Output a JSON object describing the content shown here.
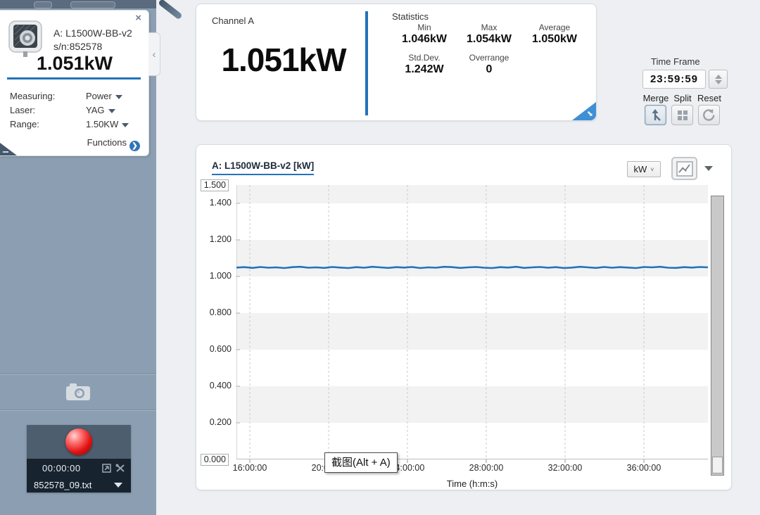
{
  "accent_color": "#2273b9",
  "icons": {
    "close": "×",
    "chevron_left": "‹",
    "functions_arrow": "❯",
    "unit_caret": "˅",
    "corner_arrow": "◥"
  },
  "sidebar": {
    "device": {
      "name": "A: L1500W-BB-v2",
      "serial": "s/n:852578",
      "reading": "1.051kW",
      "rows": [
        {
          "label": "Measuring:",
          "value": "Power"
        },
        {
          "label": "Laser:",
          "value": "YAG"
        },
        {
          "label": "Range:",
          "value": "1.50KW"
        }
      ],
      "functions_label": "Functions"
    },
    "recorder": {
      "elapsed": "00:00:00",
      "filename": "852578_09.txt"
    }
  },
  "channel_panel": {
    "title": "Channel A",
    "reading": "1.051kW",
    "stats": {
      "title": "Statistics",
      "items": [
        {
          "label": "Min",
          "value": "1.046kW"
        },
        {
          "label": "Max",
          "value": "1.054kW"
        },
        {
          "label": "Average",
          "value": "1.050kW"
        },
        {
          "label": "Std.Dev.",
          "value": "1.242W"
        },
        {
          "label": "Overrange",
          "value": "0"
        },
        {
          "label": "",
          "value": ""
        }
      ]
    }
  },
  "time_frame": {
    "label": "Time Frame",
    "value": "23:59:59",
    "buttons": [
      {
        "label": "Merge"
      },
      {
        "label": "Split"
      },
      {
        "label": "Reset"
      }
    ]
  },
  "chart_panel": {
    "unit_select": "kW"
  },
  "tooltip": {
    "text": "截图(Alt + A)"
  },
  "chart_data": {
    "type": "line",
    "title": "A: L1500W-BB-v2 [kW]",
    "xlabel": "Time (h:m:s)",
    "ylabel": "kW",
    "ylim": [
      0.0,
      1.5
    ],
    "y_max_box": "1.500",
    "y_min_box": "0.000",
    "yticks": [
      {
        "label": "1.500",
        "value": 1.5,
        "boxed": true
      },
      {
        "label": "1.400",
        "value": 1.4
      },
      {
        "label": "1.200",
        "value": 1.2
      },
      {
        "label": "1.000",
        "value": 1.0
      },
      {
        "label": "0.800",
        "value": 0.8
      },
      {
        "label": "0.600",
        "value": 0.6
      },
      {
        "label": "0.400",
        "value": 0.4
      },
      {
        "label": "0.200",
        "value": 0.2
      },
      {
        "label": "0.000",
        "value": 0.0,
        "boxed": true
      }
    ],
    "xticks": [
      "16:00:00",
      "20:00:00",
      "24:00:00",
      "28:00:00",
      "32:00:00",
      "36:00:00"
    ],
    "grid": "vertical-dashed, alternating horizontal bands every 0.2",
    "legend": "none",
    "series": [
      {
        "name": "A: L1500W-BB-v2",
        "unit": "kW",
        "approx_constant_value": 1.05,
        "values": [
          1.049,
          1.051,
          1.047,
          1.052,
          1.048,
          1.05,
          1.046,
          1.051,
          1.053,
          1.048,
          1.05,
          1.047,
          1.052,
          1.049,
          1.046,
          1.051,
          1.048,
          1.053,
          1.05,
          1.047,
          1.051,
          1.049,
          1.052,
          1.046,
          1.05,
          1.048,
          1.053,
          1.051,
          1.047,
          1.05,
          1.052,
          1.048,
          1.046,
          1.051,
          1.049,
          1.053,
          1.047,
          1.05,
          1.052,
          1.048,
          1.051,
          1.046,
          1.049,
          1.053,
          1.05,
          1.047,
          1.052,
          1.048,
          1.051,
          1.049,
          1.046,
          1.052,
          1.05,
          1.053,
          1.048,
          1.047,
          1.051,
          1.049,
          1.052,
          1.05
        ]
      }
    ],
    "stats": {
      "min": 1.046,
      "max": 1.054,
      "average": 1.05,
      "std_dev_W": 1.242,
      "overrange": 0
    }
  }
}
